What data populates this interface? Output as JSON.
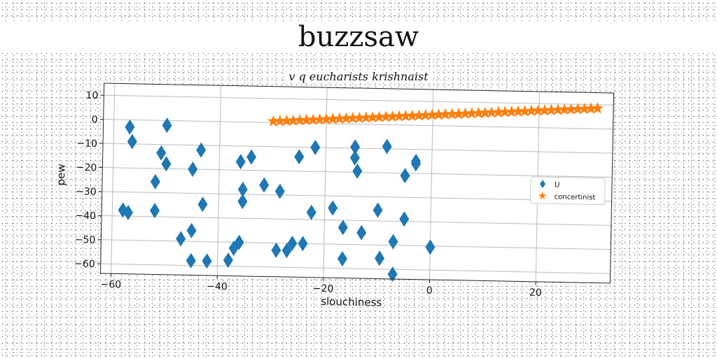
{
  "title": "buzzsaw",
  "subtitle": "v q eucharists krishnaist",
  "chart_data": {
    "type": "scatter",
    "xlabel": "slouchiness",
    "ylabel": "pew",
    "xlim": [
      -62,
      34
    ],
    "ylim": [
      -64,
      15
    ],
    "xticks": [
      -60,
      -40,
      -20,
      0,
      20
    ],
    "yticks": [
      10,
      0,
      -10,
      -20,
      -30,
      -40,
      -50,
      -60
    ],
    "xtick_labels": [
      "−60",
      "−40",
      "−20",
      "0",
      "20"
    ],
    "ytick_labels": [
      "10",
      "0",
      "−10",
      "−20",
      "−30",
      "−40",
      "−50",
      "−60"
    ],
    "grid": true,
    "legend": "center-right",
    "series": [
      {
        "name": "U",
        "marker": "diamond",
        "color": "#1f77b4",
        "points": [
          [
            -57,
            -3
          ],
          [
            -56.5,
            -9
          ],
          [
            -50,
            -2
          ],
          [
            -51,
            -13.5
          ],
          [
            -50,
            -18
          ],
          [
            -52,
            -25.5
          ],
          [
            -45,
            -20
          ],
          [
            -43.5,
            -12
          ],
          [
            -43,
            -34.5
          ],
          [
            -58,
            -37.5
          ],
          [
            -57,
            -38.5
          ],
          [
            -52,
            -37.5
          ],
          [
            -47,
            -49
          ],
          [
            -45,
            -45.5
          ],
          [
            -45,
            -58
          ],
          [
            -42,
            -58
          ],
          [
            -38,
            -57.5
          ],
          [
            -37,
            -52.5
          ],
          [
            -36,
            -50
          ],
          [
            -36,
            -16.5
          ],
          [
            -34,
            -14.5
          ],
          [
            -35.5,
            -28
          ],
          [
            -35.5,
            -33
          ],
          [
            -31.5,
            -26
          ],
          [
            -28.5,
            -28.5
          ],
          [
            -29,
            -53
          ],
          [
            -27,
            -53
          ],
          [
            -26,
            -50
          ],
          [
            -24,
            -50
          ],
          [
            -25,
            -14
          ],
          [
            -22,
            -10
          ],
          [
            -22.5,
            -37
          ],
          [
            -18.5,
            -35
          ],
          [
            -16.5,
            -43
          ],
          [
            -16.5,
            -56
          ],
          [
            -13,
            -45
          ],
          [
            -14.5,
            -9.5
          ],
          [
            -14.5,
            -14
          ],
          [
            -14,
            -19.5
          ],
          [
            -10,
            -35.5
          ],
          [
            -9.5,
            -55.5
          ],
          [
            -8.5,
            -9
          ],
          [
            -7,
            -48.5
          ],
          [
            -7,
            -62
          ],
          [
            -5,
            -21
          ],
          [
            -5,
            -39
          ],
          [
            -3,
            -15
          ],
          [
            -3,
            -16
          ],
          [
            0,
            -50.5
          ]
        ]
      },
      {
        "name": "concertinist",
        "marker": "star",
        "color": "#ff7f0e",
        "x_start": -30,
        "x_end": 31,
        "y_start": 0.5,
        "y_end": 8.5,
        "count": 50
      }
    ]
  }
}
